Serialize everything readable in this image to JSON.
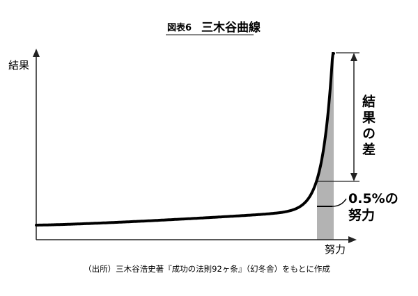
{
  "title": {
    "figure_number": "図表6",
    "text": "三木谷曲線"
  },
  "axes": {
    "y_label": "結果",
    "x_label": "努力"
  },
  "annotations": {
    "result_gap": "結果の差",
    "effort_gap_line1": "0.5%の",
    "effort_gap_line2": "努力"
  },
  "source": "（出所）三木谷浩史著『成功の法則92ヶ条』（幻冬舎）をもとに作成",
  "colors": {
    "curve": "#000000",
    "shade": "#b3b3b3",
    "axis": "#222222"
  }
}
